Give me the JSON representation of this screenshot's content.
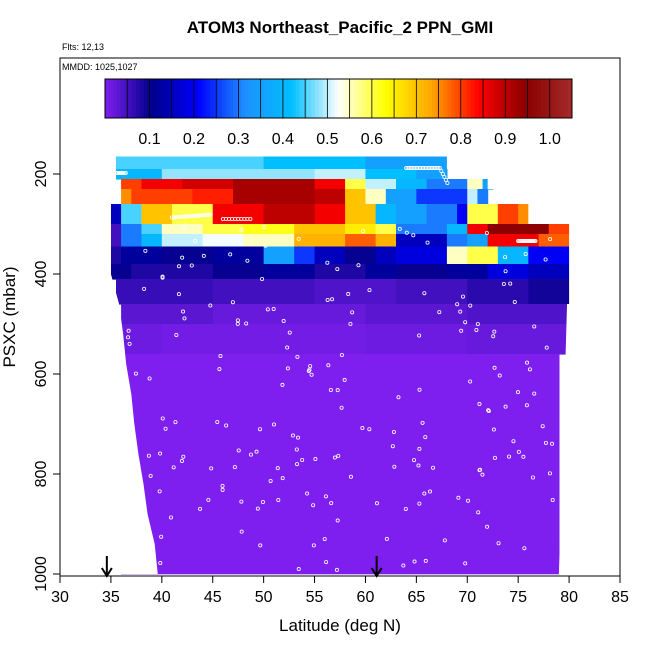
{
  "chart_data": {
    "type": "heatmap",
    "title": "ATOM3 Northeast_Pacific_2 PPN_GMI",
    "annotations": [
      "Flts: 12,13",
      "MMDD: 1025,1027"
    ],
    "xlabel": "Latitude (deg N)",
    "ylabel": "PSXC (mbar)",
    "xlim": [
      30,
      85
    ],
    "ylim": [
      1000,
      0
    ],
    "xticks": [
      "30",
      "35",
      "40",
      "45",
      "50",
      "55",
      "60",
      "65",
      "70",
      "75",
      "80",
      "85"
    ],
    "yticks": [
      "200",
      "400",
      "600",
      "800",
      "1000"
    ],
    "colorbar": {
      "range": [
        0,
        1.05
      ],
      "tick_labels": [
        "0.1",
        "0.2",
        "0.3",
        "0.4",
        "0.5",
        "0.6",
        "0.7",
        "0.8",
        "0.9",
        "1.0"
      ],
      "colors": [
        "#7f1fef",
        "#00008b",
        "#0000ff",
        "#1e90ff",
        "#00bfff",
        "#ffffff",
        "#ffff00",
        "#ffa500",
        "#ff0000",
        "#8b0000",
        "#a52a2a"
      ]
    },
    "arrows_at_latitude": [
      34.6,
      61.1
    ],
    "layers": [
      {
        "p": [
          165,
          190
        ],
        "cells": [
          [
            35.5,
            50,
            0.45
          ],
          [
            50,
            60,
            0.42
          ],
          [
            60,
            68,
            0.35
          ]
        ]
      },
      {
        "p": [
          190,
          210
        ],
        "cells": [
          [
            35.5,
            40,
            0.4
          ],
          [
            40,
            55,
            0.48
          ],
          [
            55,
            60,
            0.5
          ],
          [
            60,
            65,
            0.42
          ],
          [
            65,
            68,
            0.35
          ]
        ]
      },
      {
        "p": [
          210,
          230
        ],
        "cells": [
          [
            36,
            38,
            0.8
          ],
          [
            38,
            42,
            0.85
          ],
          [
            42,
            47,
            0.88
          ],
          [
            47,
            55,
            0.92
          ],
          [
            55,
            58,
            0.85
          ],
          [
            58,
            60,
            0.6
          ],
          [
            60,
            63,
            0.5
          ],
          [
            63,
            66,
            0.4
          ],
          [
            66,
            70,
            0.3
          ],
          [
            70,
            71.5,
            0.55
          ],
          [
            71.5,
            72.5,
            0.35
          ]
        ]
      },
      {
        "p": [
          230,
          260
        ],
        "cells": [
          [
            36,
            37,
            0.75
          ],
          [
            37,
            43,
            0.8
          ],
          [
            43,
            47,
            0.82
          ],
          [
            47,
            55,
            0.92
          ],
          [
            55,
            58,
            0.9
          ],
          [
            58,
            60,
            0.7
          ],
          [
            60,
            62,
            0.55
          ],
          [
            62,
            65,
            0.35
          ],
          [
            65,
            70,
            0.25
          ],
          [
            70,
            71,
            0.5
          ],
          [
            71,
            72,
            0.3
          ]
        ]
      },
      {
        "p": [
          260,
          300
        ],
        "cells": [
          [
            35,
            36,
            0.15
          ],
          [
            36,
            38,
            0.45
          ],
          [
            38,
            41,
            0.7
          ],
          [
            41,
            45,
            0.6
          ],
          [
            45,
            50,
            0.85
          ],
          [
            50,
            55,
            0.9
          ],
          [
            55,
            58,
            0.85
          ],
          [
            58,
            61,
            0.7
          ],
          [
            61,
            63,
            0.4
          ],
          [
            63,
            66,
            0.35
          ],
          [
            66,
            69,
            0.3
          ],
          [
            69,
            70,
            0.2
          ],
          [
            70,
            73,
            0.6
          ],
          [
            73,
            75,
            0.8
          ],
          [
            75,
            76,
            0.75
          ]
        ]
      },
      {
        "p": [
          300,
          320
        ],
        "cells": [
          [
            35,
            36,
            0.05
          ],
          [
            36,
            38,
            0.3
          ],
          [
            38,
            40,
            0.45
          ],
          [
            40,
            44,
            0.55
          ],
          [
            44,
            48,
            0.6
          ],
          [
            48,
            53,
            0.62
          ],
          [
            53,
            58,
            0.7
          ],
          [
            58,
            61,
            0.65
          ],
          [
            61,
            63,
            0.6
          ],
          [
            63,
            68,
            0.3
          ],
          [
            68,
            70,
            0.4
          ],
          [
            70,
            72,
            0.85
          ],
          [
            72,
            78,
            0.95
          ],
          [
            78,
            80,
            0.8
          ]
        ]
      },
      {
        "p": [
          320,
          345
        ],
        "cells": [
          [
            35,
            36,
            0.05
          ],
          [
            36,
            38,
            0.3
          ],
          [
            38,
            40,
            0.4
          ],
          [
            40,
            44,
            0.5
          ],
          [
            44,
            48,
            0.52
          ],
          [
            48,
            53,
            0.55
          ],
          [
            53,
            58,
            0.72
          ],
          [
            58,
            61,
            0.78
          ],
          [
            61,
            63,
            0.72
          ],
          [
            63,
            68,
            0.15
          ],
          [
            68,
            70,
            0.3
          ],
          [
            70,
            72,
            0.35
          ],
          [
            72,
            77,
            0.85
          ],
          [
            77,
            80,
            0.78
          ]
        ]
      },
      {
        "p": [
          345,
          380
        ],
        "cells": [
          [
            35,
            36,
            0.08
          ],
          [
            36,
            40,
            0.12
          ],
          [
            40,
            45,
            0.1
          ],
          [
            45,
            50,
            0.12
          ],
          [
            50,
            53,
            0.35
          ],
          [
            53,
            55,
            0.25
          ],
          [
            55,
            58,
            0.15
          ],
          [
            58,
            61,
            0.1
          ],
          [
            61,
            63,
            0.15
          ],
          [
            63,
            68,
            0.18
          ],
          [
            68,
            70,
            0.55
          ],
          [
            70,
            73,
            0.6
          ],
          [
            73,
            76,
            0.4
          ],
          [
            76,
            80,
            0.2
          ]
        ]
      },
      {
        "p": [
          380,
          410
        ],
        "cells": [
          [
            35,
            37,
            0.1
          ],
          [
            37,
            45,
            0.08
          ],
          [
            45,
            50,
            0.1
          ],
          [
            50,
            55,
            0.12
          ],
          [
            55,
            60,
            0.08
          ],
          [
            60,
            63,
            0.12
          ],
          [
            63,
            68,
            0.1
          ],
          [
            68,
            72,
            0.12
          ],
          [
            72,
            76,
            0.18
          ],
          [
            76,
            80,
            0.15
          ]
        ]
      },
      {
        "p": [
          410,
          460
        ],
        "cells": [
          [
            35.5,
            45,
            0.06
          ],
          [
            45,
            55,
            0.05
          ],
          [
            55,
            63,
            0.04
          ],
          [
            63,
            70,
            0.05
          ],
          [
            70,
            76,
            0.07
          ],
          [
            76,
            80,
            0.09
          ]
        ]
      },
      {
        "p": [
          460,
          500
        ],
        "cells": [
          [
            36,
            45,
            0.03
          ],
          [
            45,
            60,
            0.02
          ],
          [
            60,
            70,
            0.03
          ],
          [
            70,
            80,
            0.04
          ]
        ]
      },
      {
        "p": [
          500,
          560
        ],
        "cells": [
          [
            36,
            40,
            0.015
          ],
          [
            40,
            60,
            0.01
          ],
          [
            60,
            70,
            0.015
          ],
          [
            70,
            80,
            0.02
          ]
        ]
      },
      {
        "p": [
          560,
          1000
        ],
        "cells": [
          [
            36,
            79,
            0
          ]
        ]
      }
    ],
    "left_edge": [
      [
        165,
        35.5
      ],
      [
        260,
        35
      ],
      [
        400,
        35
      ],
      [
        460,
        35.8
      ],
      [
        520,
        36.2
      ],
      [
        580,
        36.5
      ],
      [
        640,
        37
      ],
      [
        700,
        37.3
      ],
      [
        760,
        37.7
      ],
      [
        820,
        38.2
      ],
      [
        880,
        38.6
      ],
      [
        940,
        39.3
      ],
      [
        1000,
        39.6
      ]
    ],
    "right_edge": [
      [
        165,
        68
      ],
      [
        190,
        68
      ],
      [
        190,
        72
      ],
      [
        230,
        72
      ],
      [
        230,
        76
      ],
      [
        300,
        76
      ],
      [
        300,
        80
      ],
      [
        460,
        80
      ],
      [
        460,
        79.8
      ],
      [
        600,
        79.6
      ],
      [
        800,
        79.3
      ],
      [
        1000,
        79
      ]
    ]
  }
}
